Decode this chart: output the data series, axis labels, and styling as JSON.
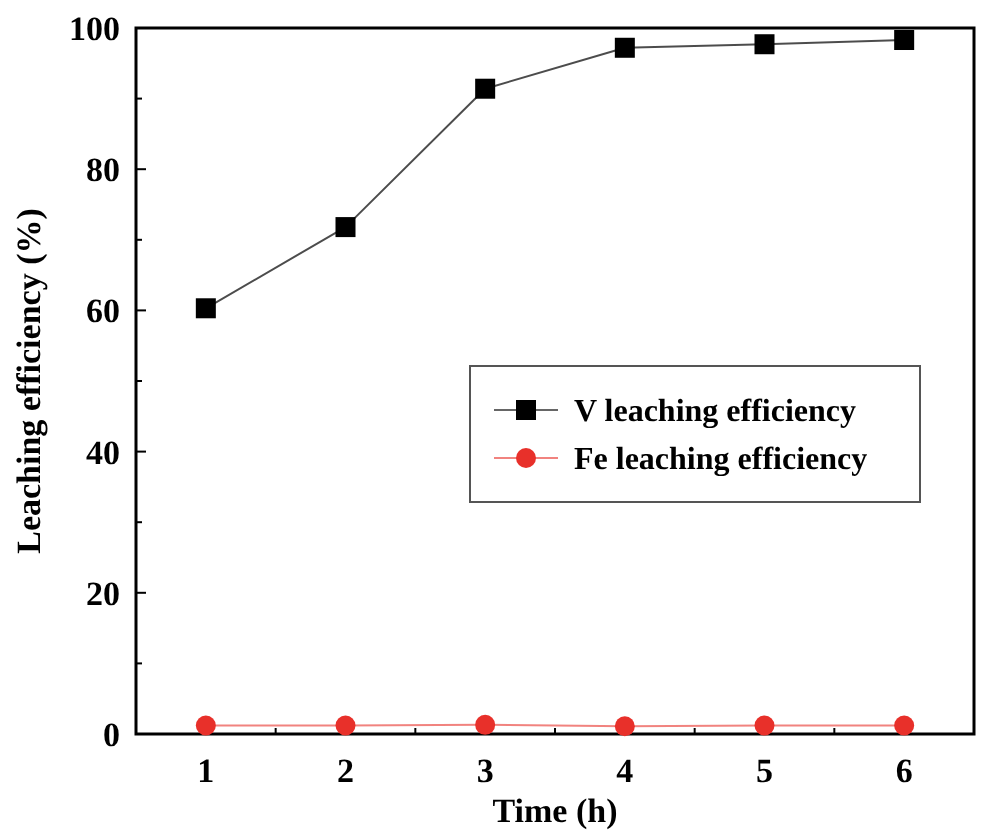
{
  "chart_data": {
    "type": "line",
    "xlabel": "Time (h)",
    "ylabel": "Leaching efficiency (%)",
    "x": [
      1,
      2,
      3,
      4,
      5,
      6
    ],
    "series": [
      {
        "name": "V leaching efficiency",
        "color": "#000000",
        "marker": "square",
        "values": [
          60.3,
          71.8,
          91.4,
          97.2,
          97.7,
          98.3
        ]
      },
      {
        "name": "Fe leaching efficiency",
        "color": "#e8302a",
        "marker": "circle",
        "values": [
          1.2,
          1.2,
          1.3,
          1.1,
          1.2,
          1.2
        ]
      }
    ],
    "xlim": [
      0.5,
      6.5
    ],
    "xticks": [
      {
        "value": 0.5,
        "label": null
      },
      1,
      {
        "value": 1.5,
        "label": null
      },
      2,
      {
        "value": 2.5,
        "label": null
      },
      3,
      {
        "value": 3.5,
        "label": null
      },
      4,
      {
        "value": 4.5,
        "label": null
      },
      5,
      {
        "value": 5.5,
        "label": null
      },
      6
    ],
    "ylim": [
      0,
      100
    ],
    "yticks": [
      0,
      {
        "value": 10,
        "label": null
      },
      20,
      {
        "value": 30,
        "label": null
      },
      40,
      {
        "value": 50,
        "label": null
      },
      60,
      {
        "value": 70,
        "label": null
      },
      80,
      {
        "value": 90,
        "label": null
      },
      100
    ],
    "grid": false,
    "legend": "right",
    "line_style": "solid"
  }
}
